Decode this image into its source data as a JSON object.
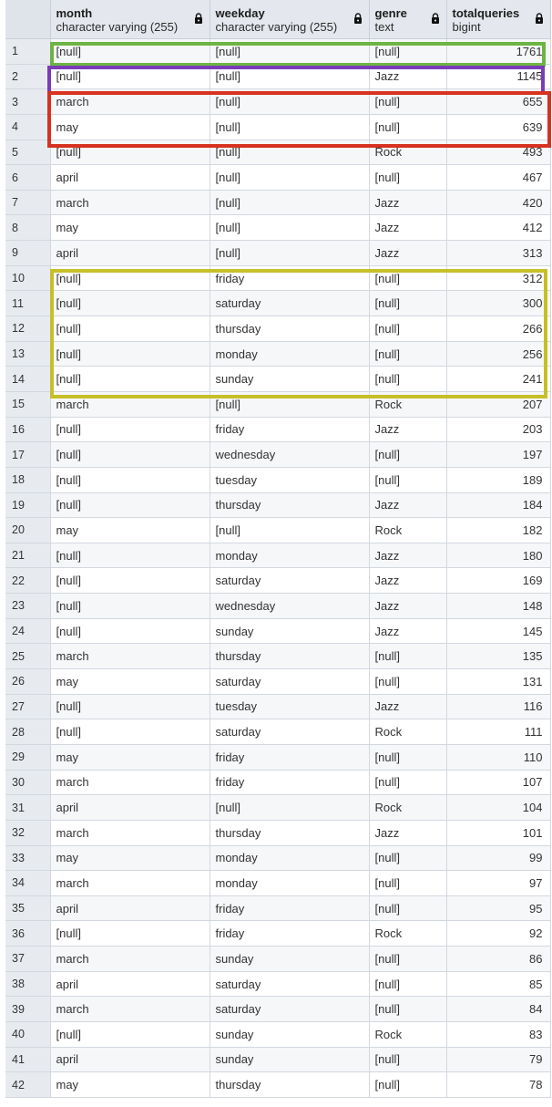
{
  "columns": [
    {
      "name": "month",
      "type": "character varying (255)"
    },
    {
      "name": "weekday",
      "type": "character varying (255)"
    },
    {
      "name": "genre",
      "type": "text"
    },
    {
      "name": "totalqueries",
      "type": "bigint"
    }
  ],
  "rows": [
    {
      "n": "1",
      "month": "[null]",
      "weekday": "[null]",
      "genre": "[null]",
      "total": "1761"
    },
    {
      "n": "2",
      "month": "[null]",
      "weekday": "[null]",
      "genre": "Jazz",
      "total": "1145"
    },
    {
      "n": "3",
      "month": "march",
      "weekday": "[null]",
      "genre": "[null]",
      "total": "655"
    },
    {
      "n": "4",
      "month": "may",
      "weekday": "[null]",
      "genre": "[null]",
      "total": "639"
    },
    {
      "n": "5",
      "month": "[null]",
      "weekday": "[null]",
      "genre": "Rock",
      "total": "493"
    },
    {
      "n": "6",
      "month": "april",
      "weekday": "[null]",
      "genre": "[null]",
      "total": "467"
    },
    {
      "n": "7",
      "month": "march",
      "weekday": "[null]",
      "genre": "Jazz",
      "total": "420"
    },
    {
      "n": "8",
      "month": "may",
      "weekday": "[null]",
      "genre": "Jazz",
      "total": "412"
    },
    {
      "n": "9",
      "month": "april",
      "weekday": "[null]",
      "genre": "Jazz",
      "total": "313"
    },
    {
      "n": "10",
      "month": "[null]",
      "weekday": "friday",
      "genre": "[null]",
      "total": "312"
    },
    {
      "n": "11",
      "month": "[null]",
      "weekday": "saturday",
      "genre": "[null]",
      "total": "300"
    },
    {
      "n": "12",
      "month": "[null]",
      "weekday": "thursday",
      "genre": "[null]",
      "total": "266"
    },
    {
      "n": "13",
      "month": "[null]",
      "weekday": "monday",
      "genre": "[null]",
      "total": "256"
    },
    {
      "n": "14",
      "month": "[null]",
      "weekday": "sunday",
      "genre": "[null]",
      "total": "241"
    },
    {
      "n": "15",
      "month": "march",
      "weekday": "[null]",
      "genre": "Rock",
      "total": "207"
    },
    {
      "n": "16",
      "month": "[null]",
      "weekday": "friday",
      "genre": "Jazz",
      "total": "203"
    },
    {
      "n": "17",
      "month": "[null]",
      "weekday": "wednesday",
      "genre": "[null]",
      "total": "197"
    },
    {
      "n": "18",
      "month": "[null]",
      "weekday": "tuesday",
      "genre": "[null]",
      "total": "189"
    },
    {
      "n": "19",
      "month": "[null]",
      "weekday": "thursday",
      "genre": "Jazz",
      "total": "184"
    },
    {
      "n": "20",
      "month": "may",
      "weekday": "[null]",
      "genre": "Rock",
      "total": "182"
    },
    {
      "n": "21",
      "month": "[null]",
      "weekday": "monday",
      "genre": "Jazz",
      "total": "180"
    },
    {
      "n": "22",
      "month": "[null]",
      "weekday": "saturday",
      "genre": "Jazz",
      "total": "169"
    },
    {
      "n": "23",
      "month": "[null]",
      "weekday": "wednesday",
      "genre": "Jazz",
      "total": "148"
    },
    {
      "n": "24",
      "month": "[null]",
      "weekday": "sunday",
      "genre": "Jazz",
      "total": "145"
    },
    {
      "n": "25",
      "month": "march",
      "weekday": "thursday",
      "genre": "[null]",
      "total": "135"
    },
    {
      "n": "26",
      "month": "may",
      "weekday": "saturday",
      "genre": "[null]",
      "total": "131"
    },
    {
      "n": "27",
      "month": "[null]",
      "weekday": "tuesday",
      "genre": "Jazz",
      "total": "116"
    },
    {
      "n": "28",
      "month": "[null]",
      "weekday": "saturday",
      "genre": "Rock",
      "total": "111"
    },
    {
      "n": "29",
      "month": "may",
      "weekday": "friday",
      "genre": "[null]",
      "total": "110"
    },
    {
      "n": "30",
      "month": "march",
      "weekday": "friday",
      "genre": "[null]",
      "total": "107"
    },
    {
      "n": "31",
      "month": "april",
      "weekday": "[null]",
      "genre": "Rock",
      "total": "104"
    },
    {
      "n": "32",
      "month": "march",
      "weekday": "thursday",
      "genre": "Jazz",
      "total": "101"
    },
    {
      "n": "33",
      "month": "may",
      "weekday": "monday",
      "genre": "[null]",
      "total": "99"
    },
    {
      "n": "34",
      "month": "march",
      "weekday": "monday",
      "genre": "[null]",
      "total": "97"
    },
    {
      "n": "35",
      "month": "april",
      "weekday": "friday",
      "genre": "[null]",
      "total": "95"
    },
    {
      "n": "36",
      "month": "[null]",
      "weekday": "friday",
      "genre": "Rock",
      "total": "92"
    },
    {
      "n": "37",
      "month": "march",
      "weekday": "sunday",
      "genre": "[null]",
      "total": "86"
    },
    {
      "n": "38",
      "month": "april",
      "weekday": "saturday",
      "genre": "[null]",
      "total": "85"
    },
    {
      "n": "39",
      "month": "march",
      "weekday": "saturday",
      "genre": "[null]",
      "total": "84"
    },
    {
      "n": "40",
      "month": "[null]",
      "weekday": "sunday",
      "genre": "Rock",
      "total": "83"
    },
    {
      "n": "41",
      "month": "april",
      "weekday": "sunday",
      "genre": "[null]",
      "total": "79"
    },
    {
      "n": "42",
      "month": "may",
      "weekday": "thursday",
      "genre": "[null]",
      "total": "78"
    }
  ],
  "highlights": [
    {
      "color": "#6cb443",
      "rows": [
        "1"
      ]
    },
    {
      "color": "#7b3bb8",
      "rows": [
        "2"
      ]
    },
    {
      "color": "#d6321f",
      "rows": [
        "3",
        "4"
      ]
    },
    {
      "color": "#c6bf2a",
      "rows": [
        "10",
        "11",
        "12",
        "13",
        "14"
      ]
    }
  ]
}
